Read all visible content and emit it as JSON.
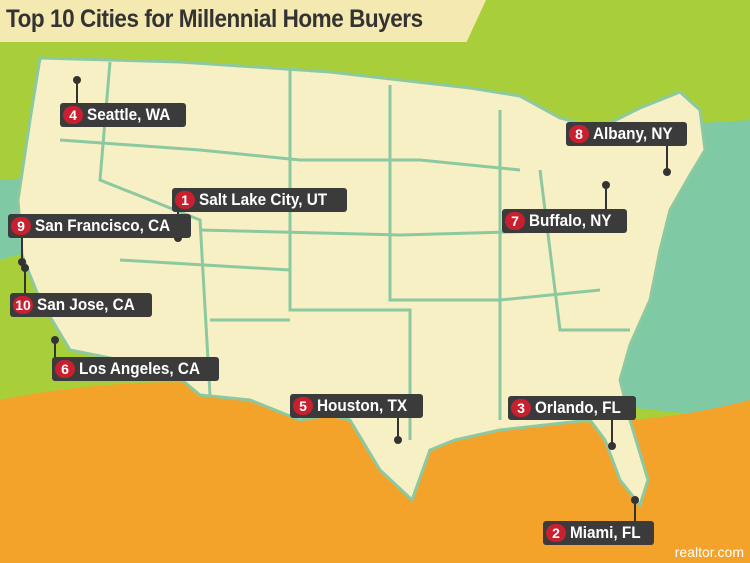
{
  "title": "Top 10 Cities for Millennial Home Buyers",
  "credit": "realtor.com",
  "colors": {
    "top_band": "#a8cf3a",
    "mid_band": "#7fc9a5",
    "bottom_band": "#f3a32a",
    "map": "#f6f0c4",
    "borders": "#8cc9a0",
    "label_bg": "#3b3b3b",
    "rank_badge": "#c8202f"
  },
  "cities": [
    {
      "rank": "1",
      "name": "Salt Lake City, UT"
    },
    {
      "rank": "2",
      "name": "Miami, FL"
    },
    {
      "rank": "3",
      "name": "Orlando, FL"
    },
    {
      "rank": "4",
      "name": "Seattle, WA"
    },
    {
      "rank": "5",
      "name": "Houston, TX"
    },
    {
      "rank": "6",
      "name": "Los Angeles, CA"
    },
    {
      "rank": "7",
      "name": "Buffalo, NY"
    },
    {
      "rank": "8",
      "name": "Albany, NY"
    },
    {
      "rank": "9",
      "name": "San Francisco, CA"
    },
    {
      "rank": "10",
      "name": "San Jose, CA"
    }
  ]
}
